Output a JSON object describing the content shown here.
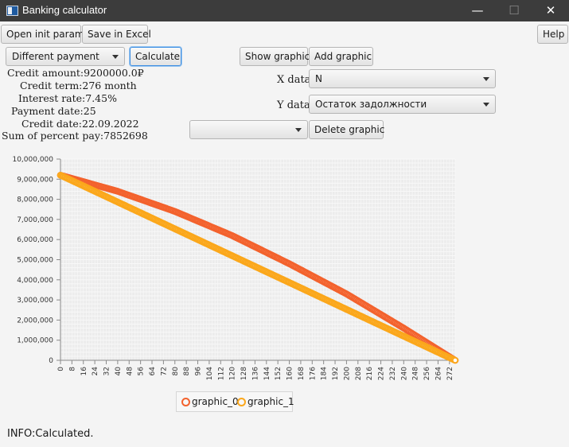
{
  "window": {
    "title": "Banking calculator",
    "minimize": "—",
    "maximize": "☐",
    "close": "✕"
  },
  "toolbar": {
    "open": "Open init param",
    "save": "Save in Excel",
    "help": "Help"
  },
  "controls": {
    "payment_type": "Different payment",
    "calculate": "Calculate",
    "show_graphic": "Show graphic",
    "add_graphic": "Add graphic",
    "x_label": "X data",
    "x_value": "N",
    "y_label": "Y data",
    "y_value": "Остаток задолжности",
    "graph_select": "",
    "delete_graphic": "Delete graphic"
  },
  "params": {
    "credit_amount": "Credit amount:9200000.0₽",
    "credit_term": "Credit term:276 month",
    "interest_rate": "Interest rate:7.45%",
    "payment_date": "Payment date:25",
    "credit_date": "Credit date:22.09.2022",
    "percent_sum": "Sum of percent pay:7852698"
  },
  "chart_data": {
    "type": "scatter",
    "x_range": [
      0,
      276
    ],
    "ylim": [
      0,
      10000000
    ],
    "y_ticks": [
      "0",
      "1,000,000",
      "2,000,000",
      "3,000,000",
      "4,000,000",
      "5,000,000",
      "6,000,000",
      "7,000,000",
      "8,000,000",
      "9,000,000",
      "10,000,000"
    ],
    "x_ticks": [
      "0",
      "8",
      "16",
      "24",
      "32",
      "40",
      "48",
      "56",
      "64",
      "72",
      "80",
      "88",
      "96",
      "104",
      "112",
      "120",
      "128",
      "136",
      "144",
      "152",
      "160",
      "168",
      "176",
      "184",
      "192",
      "200",
      "208",
      "216",
      "224",
      "232",
      "240",
      "248",
      "256",
      "264",
      "272"
    ],
    "grid": true,
    "legend": "bottom-center",
    "series": [
      {
        "name": "graphic_0",
        "color": "#f3622d",
        "x": [
          0,
          40,
          80,
          120,
          160,
          200,
          240,
          276
        ],
        "y": [
          9200000,
          8400000,
          7400000,
          6200000,
          4800000,
          3300000,
          1600000,
          0
        ]
      },
      {
        "name": "graphic_1",
        "color": "#fba71b",
        "x": [
          0,
          276
        ],
        "y": [
          9200000,
          0
        ]
      }
    ]
  },
  "status": "INFO:Calculated."
}
